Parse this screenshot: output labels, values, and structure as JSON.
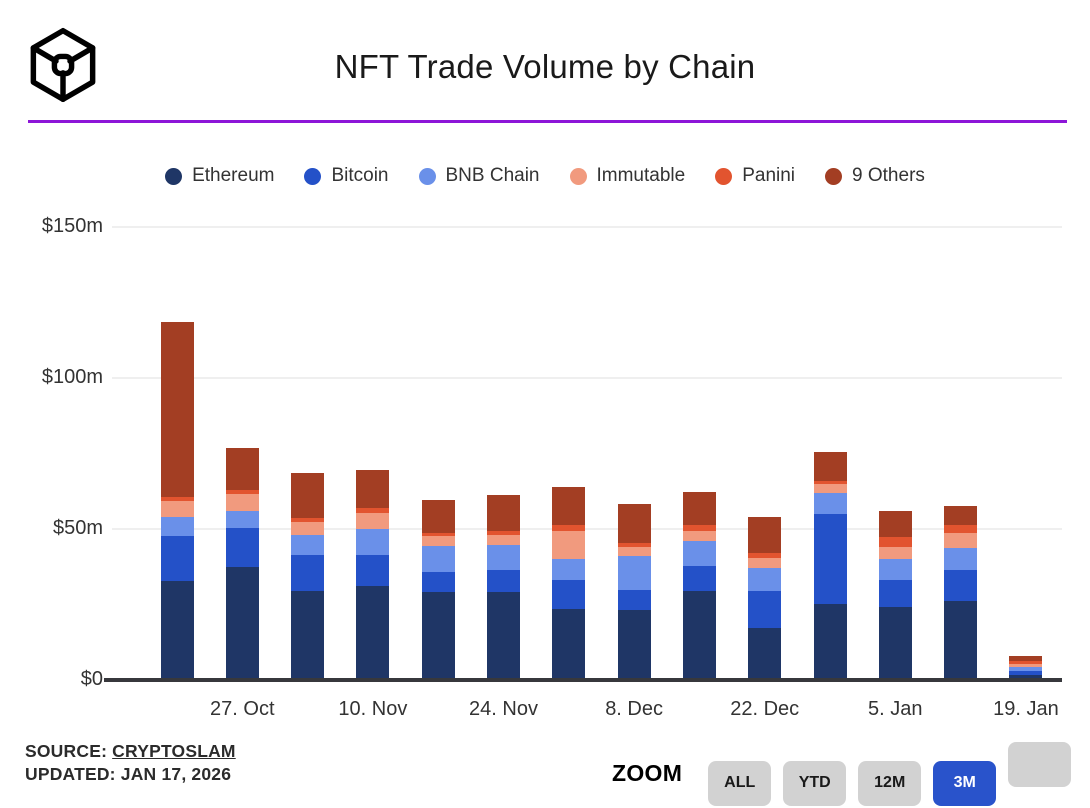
{
  "header": {
    "title": "NFT Trade Volume by Chain",
    "logo": "cryptoslam-cube-logo",
    "divider_color": "#8d16d8"
  },
  "chart_data": {
    "type": "bar",
    "stacked": true,
    "title": "NFT Trade Volume by Chain",
    "xlabel": "",
    "ylabel": "",
    "units": "USD millions",
    "ylim": [
      0,
      150
    ],
    "grid": true,
    "legend_position": "top",
    "y_ticks": [
      {
        "label": "$150m",
        "value": 150
      },
      {
        "label": "$100m",
        "value": 100
      },
      {
        "label": "$50m",
        "value": 50
      },
      {
        "label": "$0",
        "value": 0
      }
    ],
    "categories": [
      "",
      "27. Oct",
      "",
      "10. Nov",
      "",
      "24. Nov",
      "",
      "8. Dec",
      "",
      "22. Dec",
      "",
      "5. Jan",
      "",
      "19. Jan"
    ],
    "series": [
      {
        "name": "Ethereum",
        "color": "#1f3666",
        "values": [
          32.2,
          36.7,
          28.9,
          30.4,
          28.4,
          28.4,
          23.0,
          22.6,
          28.9,
          16.6,
          24.5,
          23.4,
          25.4,
          1.1
        ]
      },
      {
        "name": "Bitcoin",
        "color": "#2451c8",
        "values": [
          14.9,
          13.0,
          11.7,
          10.5,
          6.8,
          7.3,
          9.6,
          6.4,
          8.3,
          12.1,
          29.8,
          9.0,
          10.5,
          1.3
        ]
      },
      {
        "name": "BNB Chain",
        "color": "#6a90e9",
        "values": [
          6.1,
          5.7,
          6.9,
          8.6,
          8.4,
          8.5,
          6.8,
          11.3,
          8.3,
          7.7,
          6.9,
          7.0,
          7.2,
          1.1
        ]
      },
      {
        "name": "Immutable",
        "color": "#f19a7e",
        "values": [
          5.3,
          5.5,
          4.2,
          5.0,
          3.5,
          3.1,
          9.2,
          3.0,
          3.3,
          3.3,
          3.1,
          3.9,
          5.0,
          1.1
        ]
      },
      {
        "name": "Panini",
        "color": "#e2542f",
        "values": [
          1.3,
          1.4,
          1.3,
          1.9,
          0.9,
          1.3,
          2.2,
          1.4,
          1.8,
          1.7,
          1.1,
          3.3,
          2.5,
          1.0
        ]
      },
      {
        "name": "9 Others",
        "color": "#a33e23",
        "values": [
          58.2,
          13.8,
          14.9,
          12.4,
          10.8,
          12.1,
          12.4,
          12.9,
          11.0,
          11.8,
          9.4,
          8.6,
          6.4,
          1.8
        ]
      }
    ]
  },
  "footer": {
    "source_label": "SOURCE:",
    "source_name": "CRYPTOSLAM",
    "updated": "UPDATED: JAN 17, 2026",
    "zoom_label": "ZOOM",
    "zoom_buttons": [
      {
        "label": "ALL",
        "active": false
      },
      {
        "label": "YTD",
        "active": false
      },
      {
        "label": "12M",
        "active": false
      },
      {
        "label": "3M",
        "active": true
      },
      {
        "label": "",
        "active": false
      }
    ],
    "active_button_color": "#2953cb",
    "button_color": "#d2d2d2"
  }
}
